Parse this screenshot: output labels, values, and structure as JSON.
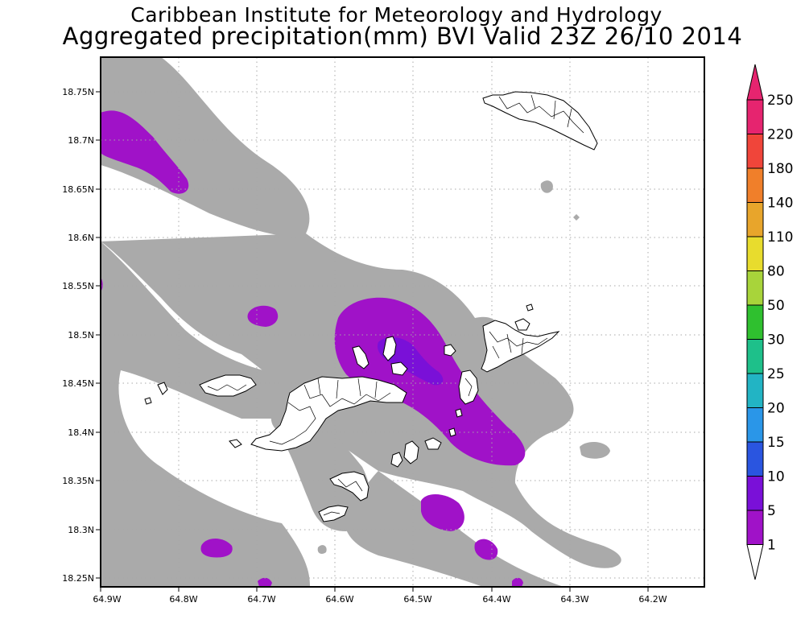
{
  "header": {
    "title": "Caribbean Institute for Meteorology and Hydrology",
    "subtitle": "Aggregated precipitation(mm) BVI Valid 23Z 26/10 2014"
  },
  "map": {
    "lon_labels": [
      "64.9W",
      "64.8W",
      "64.7W",
      "64.6W",
      "64.5W",
      "64.4W",
      "64.3W",
      "64.2W"
    ],
    "lat_labels": [
      "18.75N",
      "18.7N",
      "18.65N",
      "18.6N",
      "18.55N",
      "18.5N",
      "18.45N",
      "18.4N",
      "18.35N",
      "18.3N",
      "18.25N"
    ],
    "grid": "dotted"
  },
  "colorbar": {
    "levels": [
      "250",
      "220",
      "180",
      "140",
      "110",
      "80",
      "50",
      "30",
      "25",
      "20",
      "15",
      "10",
      "5",
      "1"
    ],
    "colors": [
      "#e6246f",
      "#f0453a",
      "#f07f2a",
      "#e8a52b",
      "#e8dc2d",
      "#a8d43a",
      "#2fc02f",
      "#1ec08a",
      "#22b4c4",
      "#2a96e8",
      "#2a55e0",
      "#7a10d8",
      "#a012c8",
      "#aaaaaa"
    ],
    "top_triangle_color": "#e6246f",
    "bottom_triangle_color": "#ffffff"
  },
  "palette": {
    "light_rain": "#aaaaaa",
    "moderate_rain": "#a012c8",
    "heavy_rain": "#7a10d8"
  }
}
